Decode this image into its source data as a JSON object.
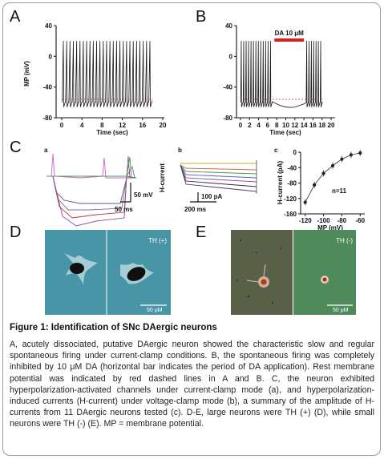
{
  "panels": {
    "A": {
      "label": "A",
      "ylabel": "MP (mV)",
      "xlabel": "Time (sec)",
      "yticks": [
        "40",
        "0",
        "-40",
        "-80"
      ],
      "xticks": [
        "0",
        "4",
        "8",
        "12",
        "16",
        "20"
      ]
    },
    "B": {
      "label": "B",
      "ylabel": "",
      "xlabel": "Time (sec)",
      "yticks": [
        "40",
        "0",
        "-40",
        "-80"
      ],
      "xticks": [
        "0",
        "2",
        "4",
        "6",
        "8",
        "10",
        "12",
        "14",
        "16",
        "18",
        "20"
      ],
      "bar_label": "DA 10 μM",
      "bar_start_sec": 7.5,
      "bar_end_sec": 14
    },
    "C": {
      "label": "C",
      "a": {
        "label": "a",
        "scale_v": "50 mV",
        "scale_t": "50 ms"
      },
      "b": {
        "label": "b",
        "ylabel": "H-current",
        "scale_i": "100 pA",
        "scale_t": "200 ms"
      },
      "c": {
        "label": "c",
        "ylabel": "H-current (pA)",
        "xlabel": "MP (mV)",
        "n_label": "n=11",
        "yticks": [
          "0",
          "-40",
          "-80",
          "-120",
          "-160"
        ],
        "xticks": [
          "-120",
          "-100",
          "-80",
          "-60"
        ]
      }
    },
    "D": {
      "label": "D",
      "overlay": "TH (+)",
      "scale": "50 μM"
    },
    "E": {
      "label": "E",
      "overlay": "TH (-)",
      "scale": "50 μM"
    }
  },
  "chart_data": [
    {
      "type": "line",
      "panel": "C.c",
      "x": [
        -120,
        -110,
        -100,
        -90,
        -80,
        -70,
        -60
      ],
      "y": [
        -130,
        -85,
        -55,
        -35,
        -18,
        -7,
        -2
      ],
      "xlabel": "MP (mV)",
      "ylabel": "H-current (pA)",
      "xlim": [
        -125,
        -55
      ],
      "ylim": [
        -160,
        0
      ]
    }
  ],
  "caption": {
    "title": "Figure 1: Identification of SNc DAergic neurons",
    "body": "A, acutely dissociated, putative DAergic neuron showed the characteristic slow and regular spontaneous firing under current-clamp conditions. B, the spontaneous firing was completely inhibited by 10 μM DA (horizontal bar indicates the period of DA application). Rest membrane potential was indicated by red dashed lines in A and B.  C, the neuron exhibited hyperpolarization-activated channels under current-clamp mode (a), and hyperpolarization-induced currents (H-current) under voltage-clamp mode (b), a summary of the amplitude of H-currents from 11 DAergic neurons tested (c). D-E, large neurons were TH (+) (D), while small neurons were TH (-) (E). MP = membrane potential."
  },
  "colors": {
    "trace": "#1a1a1a",
    "da_bar": "#d42020",
    "rest_line": "#d42020",
    "micro_bg_D": "#4d9db0",
    "micro_bg_E1": "#5a6048",
    "micro_bg_E2": "#4e8a5a"
  }
}
